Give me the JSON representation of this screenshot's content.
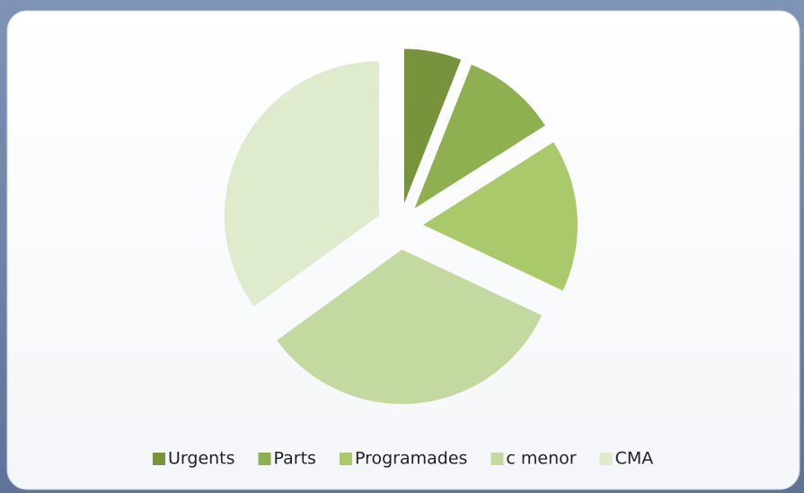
{
  "chart_data": {
    "type": "pie",
    "categories": [
      "Urgents",
      "Parts",
      "Programades",
      "c menor",
      "CMA"
    ],
    "values": [
      6,
      10,
      16,
      33,
      35
    ],
    "colors": [
      "#77933c",
      "#8fb050",
      "#a9c96a",
      "#c4d9a0",
      "#dfebcd"
    ],
    "legend": "bottom"
  }
}
